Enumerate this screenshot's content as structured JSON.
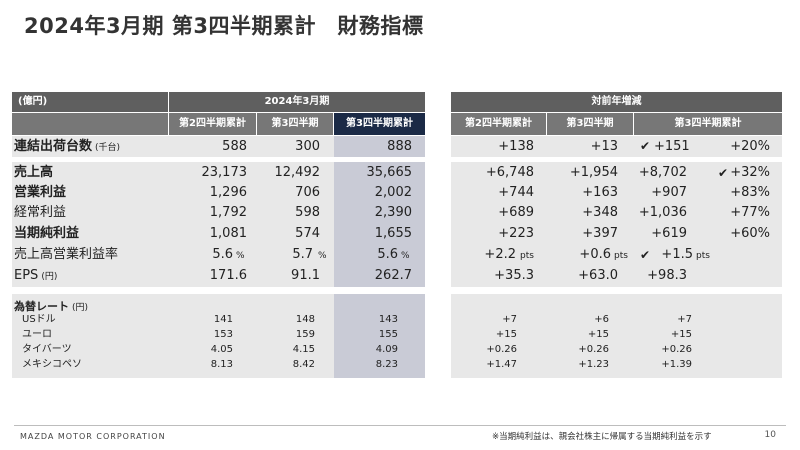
{
  "title": "2024年3月期 第3四半期累計　財務指標",
  "header": {
    "unit": "(億円)",
    "period_group": "2024年3月期",
    "yoy_group": "対前年増減",
    "cols": [
      "第2四半期累計",
      "第3四半期",
      "第3四半期累計"
    ],
    "yoy_cols": [
      "第2四半期累計",
      "第3四半期",
      "第3四半期累計"
    ]
  },
  "rows": [
    {
      "label": "連結出荷台数",
      "unit": "(千台)",
      "bold": true,
      "v": [
        "588",
        "300",
        "888"
      ],
      "y": [
        "+138",
        "+13",
        "+151"
      ],
      "check": true,
      "pct": "+20%",
      "sfx": ""
    },
    {
      "label": "売上高",
      "unit": "",
      "bold": true,
      "v": [
        "23,173",
        "12,492",
        "35,665"
      ],
      "y": [
        "+6,748",
        "+1,954",
        "+8,702"
      ],
      "check": false,
      "pct_check": true,
      "pct": "+32%",
      "sfx": ""
    },
    {
      "label": "営業利益",
      "unit": "",
      "bold": true,
      "v": [
        "1,296",
        "706",
        "2,002"
      ],
      "y": [
        "+744",
        "+163",
        "+907"
      ],
      "pct": "+83%",
      "sfx": ""
    },
    {
      "label": "経常利益",
      "unit": "",
      "bold": false,
      "v": [
        "1,792",
        "598",
        "2,390"
      ],
      "y": [
        "+689",
        "+348",
        "+1,036"
      ],
      "pct": "+77%",
      "sfx": ""
    },
    {
      "label": "当期純利益",
      "unit": "",
      "bold": true,
      "v": [
        "1,081",
        "574",
        "1,655"
      ],
      "y": [
        "+223",
        "+397",
        "+619"
      ],
      "pct": "+60%",
      "sfx": ""
    },
    {
      "label": "売上高営業利益率",
      "unit": "",
      "bold": false,
      "v": [
        "5.6",
        "5.7",
        "5.6"
      ],
      "vsfx": "%",
      "y": [
        "+2.2",
        "+0.6",
        "+1.5"
      ],
      "ysfx": "pts",
      "check": true,
      "pct": ""
    },
    {
      "label": "EPS",
      "unit": "(円)",
      "bold": false,
      "v": [
        "171.6",
        "91.1",
        "262.7"
      ],
      "y": [
        "+35.3",
        "+63.0",
        "+98.3"
      ],
      "pct": ""
    }
  ],
  "fx": {
    "label": "為替レート",
    "unit": "(円)",
    "rows": [
      {
        "label": "USドル",
        "v": [
          "141",
          "148",
          "143"
        ],
        "y": [
          "+7",
          "+6",
          "+7"
        ]
      },
      {
        "label": "ユーロ",
        "v": [
          "153",
          "159",
          "155"
        ],
        "y": [
          "+15",
          "+15",
          "+15"
        ]
      },
      {
        "label": "タイバーツ",
        "v": [
          "4.05",
          "4.15",
          "4.09"
        ],
        "y": [
          "+0.26",
          "+0.26",
          "+0.26"
        ]
      },
      {
        "label": "メキシコペソ",
        "v": [
          "8.13",
          "8.42",
          "8.23"
        ],
        "y": [
          "+1.47",
          "+1.23",
          "+1.39"
        ]
      }
    ]
  },
  "footer": {
    "company": "MAZDA MOTOR CORPORATION",
    "note": "※当期純利益は、親会社株主に帰属する当期純利益を示す",
    "page": "10"
  },
  "colors": {
    "header_dark": "#5f5f5f",
    "header_mid": "#777777",
    "header_navy": "#1b2a46",
    "highlight": "#c9cbd6",
    "row_shade": "#e8e8e8"
  }
}
